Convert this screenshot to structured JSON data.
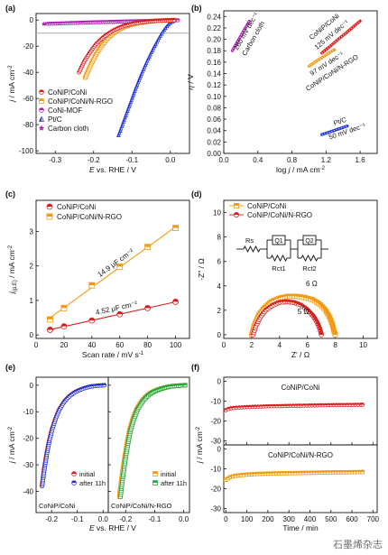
{
  "figure": {
    "watermark": "石墨烯杂志",
    "colors": {
      "red": "#d81e1e",
      "orange": "#f39a12",
      "purple": "#b01fb6",
      "blue": "#1f33d6",
      "green": "#2aa33a",
      "gray": "#a8a8a8"
    }
  },
  "chart_data": [
    {
      "id": "a",
      "panel_label": "(a)",
      "type": "line",
      "xlabel_prefix": "E",
      "xlabel_suffix": " vs. RHE / V",
      "ylabel_prefix": "j",
      "ylabel_suffix": " / mA cm",
      "ylabel_sup": "-2",
      "xlim": [
        -0.35,
        0.05
      ],
      "ylim": [
        -102,
        5
      ],
      "xticks": [
        -0.3,
        -0.2,
        -0.1,
        0.0
      ],
      "xtick_labels": [
        "-0.3",
        "-0.2",
        "-0.1",
        "0.0"
      ],
      "yticks": [
        0,
        -20,
        -40,
        -60,
        -80,
        -100
      ],
      "ytick_labels": [
        "0",
        "-20",
        "-40",
        "-60",
        "-80",
        "-100"
      ],
      "reference_line_y": -10,
      "legend_position": "lower-left",
      "series": [
        {
          "name": "CoNiP/CoNi",
          "color": "#d81e1e",
          "marker": "half-circle",
          "x": [
            -0.238,
            -0.225,
            -0.21,
            -0.195,
            -0.18,
            -0.165,
            -0.15,
            -0.135,
            -0.12,
            -0.1,
            -0.08,
            -0.06,
            -0.04,
            -0.02,
            0.0,
            0.01
          ],
          "y": [
            -40,
            -32,
            -25,
            -19,
            -14.5,
            -11,
            -8.2,
            -6,
            -4.3,
            -2.8,
            -1.8,
            -1.1,
            -0.6,
            -0.3,
            -0.1,
            0
          ]
        },
        {
          "name": "CoNiP/CoNi/N-RGO",
          "color": "#f39a12",
          "marker": "half-square",
          "x": [
            -0.222,
            -0.21,
            -0.195,
            -0.18,
            -0.165,
            -0.15,
            -0.135,
            -0.12,
            -0.1,
            -0.08,
            -0.06,
            -0.04,
            -0.02,
            0.0,
            0.01
          ],
          "y": [
            -44,
            -36,
            -27,
            -20,
            -14.5,
            -10.5,
            -7.5,
            -5.3,
            -3.4,
            -2.1,
            -1.3,
            -0.7,
            -0.35,
            -0.1,
            0
          ]
        },
        {
          "name": "CoNi-MOF",
          "color": "#b01fb6",
          "marker": "half-circle",
          "x": [
            -0.32,
            -0.28,
            -0.24,
            -0.2,
            -0.16,
            -0.12,
            -0.08,
            -0.04,
            0.0,
            0.02
          ],
          "y": [
            -2.8,
            -2.4,
            -2.0,
            -1.6,
            -1.3,
            -1.0,
            -0.7,
            -0.45,
            -0.2,
            -0.1
          ]
        },
        {
          "name": "Pt/C",
          "color": "#1f33d6",
          "marker": "half-triangle",
          "x": [
            -0.135,
            -0.12,
            -0.105,
            -0.09,
            -0.075,
            -0.06,
            -0.045,
            -0.03,
            -0.02,
            -0.01,
            0.0,
            0.01
          ],
          "y": [
            -88,
            -76,
            -64,
            -52,
            -41,
            -31,
            -22,
            -14,
            -9,
            -5,
            -2,
            -0.5
          ]
        },
        {
          "name": "Carbon cloth",
          "color": "#b01fb6",
          "marker": "star",
          "x": [
            -0.33,
            -0.27,
            -0.21,
            -0.15,
            -0.09,
            -0.03,
            0.02
          ],
          "y": [
            -3.0,
            -2.5,
            -2.0,
            -1.6,
            -1.1,
            -0.6,
            -0.2
          ]
        }
      ]
    },
    {
      "id": "b",
      "panel_label": "(b)",
      "type": "line",
      "xlabel_prefix": "log ",
      "xlabel_italic": "j",
      "xlabel_suffix": " / mA cm",
      "xlabel_sup": "-2",
      "ylabel_prefix": "η",
      "ylabel_suffix": " / V",
      "xlim": [
        0.0,
        1.8
      ],
      "ylim": [
        0.0,
        0.25
      ],
      "xticks": [
        0.0,
        0.4,
        0.8,
        1.2,
        1.6
      ],
      "xtick_labels": [
        "0.0",
        "0.4",
        "0.8",
        "1.2",
        "1.6"
      ],
      "yticks": [
        0.0,
        0.02,
        0.04,
        0.06,
        0.08,
        0.1,
        0.12,
        0.14,
        0.16,
        0.18,
        0.2,
        0.22,
        0.24
      ],
      "ytick_labels": [
        "0.00",
        "0.02",
        "0.04",
        "0.06",
        "0.08",
        "0.10",
        "0.12",
        "0.14",
        "0.16",
        "0.18",
        "0.20",
        "0.22",
        "0.24"
      ],
      "series": [
        {
          "name": "Carbon cloth",
          "color": "#b01fb6",
          "x": [
            0.1,
            0.15,
            0.2,
            0.25,
            0.3
          ],
          "y": [
            0.18,
            0.193,
            0.206,
            0.219,
            0.232
          ],
          "label_lines": [
            "260 mV dec⁻¹",
            "Carbon cloth"
          ]
        },
        {
          "name": "CoNiP/CoNi",
          "color": "#d81e1e",
          "x": [
            1.15,
            1.25,
            1.35,
            1.45,
            1.55,
            1.6
          ],
          "y": [
            0.176,
            0.188,
            0.201,
            0.213,
            0.226,
            0.232
          ],
          "label_lines": [
            "CoNiP/CoNi",
            "125 mV dec⁻¹"
          ]
        },
        {
          "name": "CoNiP/CoNi/N-RGO",
          "color": "#f39a12",
          "x": [
            1.0,
            1.1,
            1.2,
            1.3
          ],
          "y": [
            0.153,
            0.163,
            0.173,
            0.182
          ],
          "label_lines": [
            "97 mV dec⁻¹",
            "CoNiP/CoNi/N-RGO"
          ]
        },
        {
          "name": "Pt/C",
          "color": "#1f33d6",
          "x": [
            1.15,
            1.25,
            1.35,
            1.45
          ],
          "y": [
            0.033,
            0.038,
            0.043,
            0.048
          ],
          "label_lines": [
            "Pt/C",
            "50 mV dec⁻¹"
          ]
        }
      ]
    },
    {
      "id": "c",
      "panel_label": "(c)",
      "type": "scatter",
      "xlabel": "Scan rate / mV s",
      "xlabel_sup": "-1",
      "ylabel_prefix": "j",
      "ylabel_sub": "(p,E)",
      "ylabel_suffix": " / mA cm",
      "ylabel_sup": "-2",
      "xlim": [
        0,
        110
      ],
      "ylim": [
        -0.1,
        3.9
      ],
      "xticks": [
        0,
        20,
        40,
        60,
        80,
        100
      ],
      "xtick_labels": [
        "0",
        "20",
        "40",
        "60",
        "80",
        "100"
      ],
      "yticks": [
        0,
        1,
        2,
        3
      ],
      "ytick_labels": [
        "0",
        "1",
        "2",
        "3"
      ],
      "legend_position": "top-left",
      "series": [
        {
          "name": "CoNiP/CoNi",
          "color": "#d81e1e",
          "marker": "half-circle",
          "x": [
            10,
            20,
            40,
            60,
            80,
            100
          ],
          "y": [
            0.15,
            0.25,
            0.42,
            0.6,
            0.78,
            0.96
          ],
          "annotation": "4.52 μF cm⁻²"
        },
        {
          "name": "CoNiP/CoNi/N-RGO",
          "color": "#f39a12",
          "marker": "half-square",
          "x": [
            10,
            20,
            40,
            60,
            80,
            100
          ],
          "y": [
            0.45,
            0.78,
            1.44,
            1.98,
            2.55,
            3.1
          ],
          "annotation": "14.9 μF cm⁻²"
        }
      ]
    },
    {
      "id": "d",
      "panel_label": "(d)",
      "type": "scatter",
      "xlabel": "Z′ / Ω",
      "ylabel": "-Z″ / Ω",
      "xlim": [
        0,
        11
      ],
      "ylim": [
        -0.3,
        11
      ],
      "xticks": [
        0,
        2,
        4,
        6,
        8,
        10
      ],
      "xtick_labels": [
        "0",
        "2",
        "4",
        "6",
        "8",
        "10"
      ],
      "yticks": [
        0,
        2,
        4,
        6,
        8,
        10
      ],
      "ytick_labels": [
        "0",
        "2",
        "4",
        "6",
        "8",
        "10"
      ],
      "legend_position": "top-left",
      "circuit_labels": [
        "Rs",
        "Q1",
        "Q2",
        "Rct1",
        "Rct2"
      ],
      "series": [
        {
          "name": "CoNiP/CoNi",
          "color": "#f39a12",
          "marker": "half-square",
          "x": [
            2.0,
            2.2,
            2.5,
            2.9,
            3.4,
            4.0,
            4.6,
            5.2,
            5.8,
            6.4,
            6.9,
            7.3,
            7.6,
            7.8,
            7.9,
            8.0
          ],
          "y": [
            0.0,
            0.8,
            1.6,
            2.2,
            2.7,
            3.0,
            3.15,
            3.15,
            3.05,
            2.85,
            2.5,
            2.0,
            1.4,
            0.8,
            0.3,
            0.0
          ],
          "annotation": "6 Ω"
        },
        {
          "name": "CoNiP/CoNi/N-RGO",
          "color": "#d81e1e",
          "marker": "half-circle",
          "x": [
            2.1,
            2.3,
            2.6,
            3.0,
            3.5,
            4.0,
            4.5,
            5.0,
            5.5,
            6.0,
            6.4,
            6.7,
            6.9,
            7.0
          ],
          "y": [
            0.0,
            0.7,
            1.4,
            2.0,
            2.4,
            2.65,
            2.7,
            2.65,
            2.45,
            2.05,
            1.55,
            1.0,
            0.45,
            0.0
          ],
          "annotation": "5 Ω"
        }
      ]
    },
    {
      "id": "e",
      "panel_label": "(e)",
      "type": "line",
      "xlabel_prefix": "E",
      "xlabel_suffix": " vs. RHE / V",
      "ylabel_prefix": "j",
      "ylabel_suffix": " / mA cm",
      "ylabel_sup": "-2",
      "ylim": [
        -48,
        3
      ],
      "yticks": [
        0,
        -10,
        -20,
        -30,
        -40
      ],
      "ytick_labels": [
        "0",
        "-10",
        "-20",
        "-30",
        "-40"
      ],
      "subplots": [
        {
          "name": "CoNiP/CoNi",
          "xlim": [
            -0.26,
            0.02
          ],
          "xticks": [
            -0.2,
            -0.1,
            0.0
          ],
          "xtick_labels": [
            "-0.2",
            "-0.1",
            "0.0"
          ],
          "series": [
            {
              "name": "initial",
              "color": "#d81e1e",
              "marker": "half-circle",
              "x": [
                -0.238,
                -0.23,
                -0.22,
                -0.21,
                -0.2,
                -0.185,
                -0.17,
                -0.15,
                -0.13,
                -0.11,
                -0.09,
                -0.07,
                -0.05,
                -0.03,
                -0.01,
                0.005
              ],
              "y": [
                -38,
                -32,
                -26,
                -21,
                -17,
                -12.5,
                -9,
                -6,
                -4,
                -2.6,
                -1.7,
                -1.0,
                -0.5,
                -0.25,
                -0.1,
                0
              ]
            },
            {
              "name": "after 11h",
              "color": "#1f33d6",
              "marker": "half-circle",
              "x": [
                -0.236,
                -0.228,
                -0.218,
                -0.208,
                -0.198,
                -0.183,
                -0.168,
                -0.148,
                -0.128,
                -0.108,
                -0.088,
                -0.068,
                -0.048,
                -0.028,
                -0.008,
                0.005
              ],
              "y": [
                -38,
                -32,
                -26,
                -21,
                -17,
                -12.5,
                -9,
                -6,
                -4,
                -2.6,
                -1.7,
                -1.0,
                -0.5,
                -0.25,
                -0.1,
                0
              ]
            }
          ]
        },
        {
          "name": "CoNiP/CoNi/N-RGO",
          "xlim": [
            -0.26,
            0.02
          ],
          "xticks": [
            -0.2,
            -0.1,
            0.0
          ],
          "xtick_labels": [
            "-0.2",
            "-0.1",
            "0.0"
          ],
          "series": [
            {
              "name": "initial",
              "color": "#f39a12",
              "marker": "half-square",
              "x": [
                -0.222,
                -0.214,
                -0.205,
                -0.196,
                -0.187,
                -0.175,
                -0.162,
                -0.145,
                -0.128,
                -0.11,
                -0.09,
                -0.07,
                -0.05,
                -0.03,
                -0.01,
                0.005
              ],
              "y": [
                -42,
                -35,
                -28,
                -22,
                -17,
                -12.5,
                -9,
                -6,
                -4,
                -2.6,
                -1.7,
                -1.0,
                -0.5,
                -0.25,
                -0.1,
                0
              ]
            },
            {
              "name": "after 11h",
              "color": "#2aa33a",
              "marker": "half-square",
              "x": [
                -0.218,
                -0.21,
                -0.201,
                -0.192,
                -0.183,
                -0.171,
                -0.158,
                -0.141,
                -0.124,
                -0.106,
                -0.086,
                -0.066,
                -0.046,
                -0.026,
                -0.006,
                0.005
              ],
              "y": [
                -42,
                -35,
                -28,
                -22,
                -17,
                -12.5,
                -9,
                -6,
                -4,
                -2.6,
                -1.7,
                -1.0,
                -0.5,
                -0.25,
                -0.1,
                0
              ]
            }
          ]
        }
      ]
    },
    {
      "id": "f",
      "panel_label": "(f)",
      "type": "line",
      "xlabel": "Time / min",
      "ylabel_prefix": "j",
      "ylabel_suffix": " / mA cm",
      "ylabel_sup": "-2",
      "xlim": [
        -10,
        720
      ],
      "xticks": [
        0,
        100,
        200,
        300,
        400,
        500,
        600,
        700
      ],
      "xtick_labels": [
        "0",
        "100",
        "200",
        "300",
        "400",
        "500",
        "600",
        "700"
      ],
      "ylim": [
        -32,
        2
      ],
      "yticks": [
        0,
        -10,
        -20,
        -30
      ],
      "ytick_labels": [
        "0",
        "-10",
        "-20",
        "-30"
      ],
      "subplots": [
        {
          "name": "CoNiP/CoNi",
          "color": "#d81e1e",
          "marker": "half-circle",
          "x": [
            0,
            10,
            25,
            50,
            100,
            150,
            200,
            300,
            400,
            500,
            600,
            650
          ],
          "y": [
            -14.5,
            -14.0,
            -13.6,
            -13.3,
            -13.0,
            -12.8,
            -12.6,
            -12.4,
            -12.2,
            -12.0,
            -11.9,
            -11.8
          ]
        },
        {
          "name": "CoNiP/CoNi/N-RGO",
          "color": "#f39a12",
          "marker": "half-square",
          "x": [
            0,
            10,
            25,
            50,
            100,
            150,
            200,
            300,
            400,
            500,
            600,
            650
          ],
          "y": [
            -15.5,
            -14.8,
            -14.0,
            -13.4,
            -12.9,
            -12.6,
            -12.4,
            -12.2,
            -12.0,
            -11.8,
            -11.7,
            -11.6
          ]
        }
      ]
    }
  ]
}
